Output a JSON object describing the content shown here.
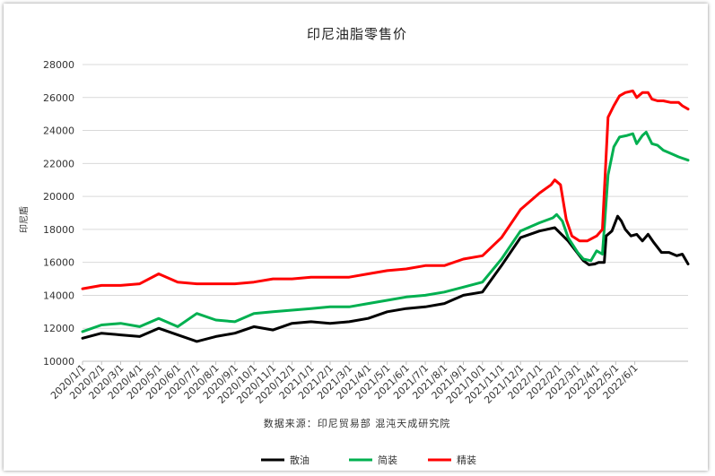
{
  "chart_data": {
    "type": "line",
    "title": "印尼油脂零售价",
    "ylabel": "印尼盾",
    "source": "数据来源：印尼贸易部 混沌天成研究院",
    "ylim": [
      10000,
      28000
    ],
    "yticks": [
      "10000",
      "12000",
      "14000",
      "16000",
      "18000",
      "20000",
      "22000",
      "24000",
      "26000",
      "28000"
    ],
    "xticks": [
      "2020/1/1",
      "2020/2/1",
      "2020/3/1",
      "2020/4/1",
      "2020/5/1",
      "2020/6/1",
      "2020/7/1",
      "2020/8/1",
      "2020/9/1",
      "2020/10/1",
      "2020/11/1",
      "2020/12/1",
      "2021/1/1",
      "2021/2/1",
      "2021/3/1",
      "2021/4/1",
      "2021/5/1",
      "2021/6/1",
      "2021/7/1",
      "2021/8/1",
      "2021/9/1",
      "2021/10/1",
      "2021/11/1",
      "2021/12/1",
      "2022/1/1",
      "2022/2/1",
      "2022/3/1",
      "2022/4/1",
      "2022/5/1",
      "2022/6/1"
    ],
    "grid": true,
    "legend_position": "bottom",
    "series": [
      {
        "name": "散油",
        "color": "#000000",
        "points": [
          [
            0,
            11400
          ],
          [
            1,
            11700
          ],
          [
            2,
            11600
          ],
          [
            3,
            11500
          ],
          [
            4,
            12000
          ],
          [
            5,
            11600
          ],
          [
            6,
            11200
          ],
          [
            7,
            11500
          ],
          [
            8,
            11700
          ],
          [
            9,
            12100
          ],
          [
            10,
            11900
          ],
          [
            11,
            12300
          ],
          [
            12,
            12400
          ],
          [
            13,
            12300
          ],
          [
            14,
            12400
          ],
          [
            15,
            12600
          ],
          [
            16,
            13000
          ],
          [
            17,
            13200
          ],
          [
            18,
            13300
          ],
          [
            19,
            13500
          ],
          [
            20,
            14000
          ],
          [
            21,
            14200
          ],
          [
            22,
            15800
          ],
          [
            23,
            17500
          ],
          [
            24,
            17900
          ],
          [
            24.8,
            18100
          ],
          [
            25.5,
            17300
          ],
          [
            26.3,
            16100
          ],
          [
            26.6,
            15850
          ],
          [
            26.9,
            15900
          ],
          [
            27.1,
            16000
          ],
          [
            27.4,
            16000
          ],
          [
            27.5,
            17600
          ],
          [
            27.8,
            17900
          ],
          [
            28.1,
            18800
          ],
          [
            28.3,
            18500
          ],
          [
            28.5,
            18000
          ],
          [
            28.8,
            17600
          ],
          [
            29.1,
            17700
          ],
          [
            29.4,
            17300
          ],
          [
            29.7,
            17700
          ],
          [
            30.0,
            17200
          ],
          [
            30.4,
            16600
          ],
          [
            30.8,
            16600
          ],
          [
            31.2,
            16400
          ],
          [
            31.5,
            16500
          ],
          [
            31.8,
            15900
          ]
        ]
      },
      {
        "name": "简装",
        "color": "#00b050",
        "points": [
          [
            0,
            11800
          ],
          [
            1,
            12200
          ],
          [
            2,
            12300
          ],
          [
            3,
            12100
          ],
          [
            4,
            12600
          ],
          [
            5,
            12100
          ],
          [
            6,
            12900
          ],
          [
            7,
            12500
          ],
          [
            8,
            12400
          ],
          [
            9,
            12900
          ],
          [
            10,
            13000
          ],
          [
            11,
            13100
          ],
          [
            12,
            13200
          ],
          [
            13,
            13300
          ],
          [
            14,
            13300
          ],
          [
            15,
            13500
          ],
          [
            16,
            13700
          ],
          [
            17,
            13900
          ],
          [
            18,
            14000
          ],
          [
            19,
            14200
          ],
          [
            20,
            14500
          ],
          [
            21,
            14800
          ],
          [
            22,
            16200
          ],
          [
            23,
            17900
          ],
          [
            24,
            18400
          ],
          [
            24.7,
            18700
          ],
          [
            24.9,
            18900
          ],
          [
            25.2,
            18500
          ],
          [
            25.5,
            17500
          ],
          [
            26.0,
            16600
          ],
          [
            26.3,
            16200
          ],
          [
            26.7,
            16100
          ],
          [
            27.0,
            16700
          ],
          [
            27.3,
            16500
          ],
          [
            27.6,
            21300
          ],
          [
            27.9,
            23000
          ],
          [
            28.2,
            23600
          ],
          [
            28.6,
            23700
          ],
          [
            28.9,
            23800
          ],
          [
            29.1,
            23200
          ],
          [
            29.4,
            23700
          ],
          [
            29.6,
            23900
          ],
          [
            29.9,
            23200
          ],
          [
            30.2,
            23100
          ],
          [
            30.5,
            22800
          ],
          [
            30.9,
            22600
          ],
          [
            31.3,
            22400
          ],
          [
            31.8,
            22200
          ]
        ]
      },
      {
        "name": "精装",
        "color": "#ff0000",
        "points": [
          [
            0,
            14400
          ],
          [
            1,
            14600
          ],
          [
            2,
            14600
          ],
          [
            3,
            14700
          ],
          [
            4,
            15300
          ],
          [
            5,
            14800
          ],
          [
            6,
            14700
          ],
          [
            7,
            14700
          ],
          [
            8,
            14700
          ],
          [
            9,
            14800
          ],
          [
            10,
            15000
          ],
          [
            11,
            15000
          ],
          [
            12,
            15100
          ],
          [
            13,
            15100
          ],
          [
            14,
            15100
          ],
          [
            15,
            15300
          ],
          [
            16,
            15500
          ],
          [
            17,
            15600
          ],
          [
            18,
            15800
          ],
          [
            19,
            15800
          ],
          [
            20,
            16200
          ],
          [
            21,
            16400
          ],
          [
            22,
            17500
          ],
          [
            23,
            19200
          ],
          [
            24,
            20200
          ],
          [
            24.6,
            20700
          ],
          [
            24.8,
            21000
          ],
          [
            25.1,
            20700
          ],
          [
            25.4,
            18600
          ],
          [
            25.7,
            17600
          ],
          [
            26.1,
            17300
          ],
          [
            26.5,
            17300
          ],
          [
            27.0,
            17600
          ],
          [
            27.3,
            18000
          ],
          [
            27.6,
            24800
          ],
          [
            27.9,
            25500
          ],
          [
            28.2,
            26100
          ],
          [
            28.5,
            26300
          ],
          [
            28.9,
            26400
          ],
          [
            29.1,
            26000
          ],
          [
            29.4,
            26300
          ],
          [
            29.7,
            26300
          ],
          [
            29.9,
            25900
          ],
          [
            30.2,
            25800
          ],
          [
            30.5,
            25800
          ],
          [
            30.9,
            25700
          ],
          [
            31.3,
            25700
          ],
          [
            31.5,
            25500
          ],
          [
            31.8,
            25300
          ]
        ]
      }
    ]
  }
}
